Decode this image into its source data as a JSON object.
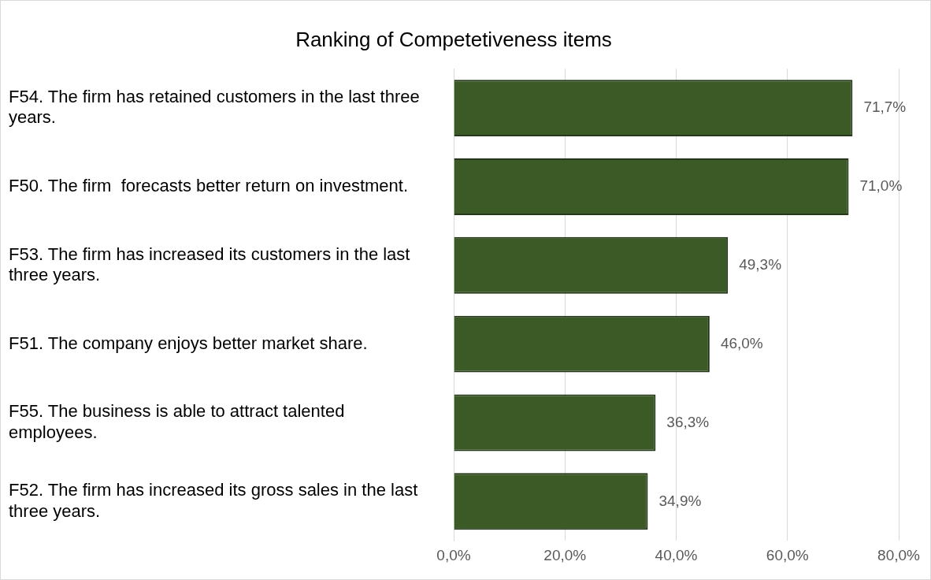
{
  "chart_data": {
    "type": "bar",
    "orientation": "horizontal",
    "title": "Ranking of Competetiveness items",
    "categories": [
      "F54. The firm has retained customers in the last three years.",
      "F50. The firm  forecasts better return on investment.",
      "F53. The firm has increased its customers in the last three years.",
      "F51. The company enjoys better market share.",
      "F55. The business is able to attract talented employees.",
      "F52. The firm has increased its gross sales in the last three years."
    ],
    "values": [
      71.7,
      71.0,
      49.3,
      46.0,
      36.3,
      34.9
    ],
    "value_labels": [
      "71,7%",
      "71,0%",
      "49,3%",
      "46,0%",
      "36,3%",
      "34,9%"
    ],
    "color": "#3b5a26",
    "xlim": [
      0,
      80
    ],
    "xticks": [
      {
        "value": 0,
        "label": "0,0%"
      },
      {
        "value": 20,
        "label": "20,0%"
      },
      {
        "value": 40,
        "label": "40,0%"
      },
      {
        "value": 60,
        "label": "60,0%"
      },
      {
        "value": 80,
        "label": "80,0%"
      }
    ],
    "grid": "x",
    "legend": false
  }
}
